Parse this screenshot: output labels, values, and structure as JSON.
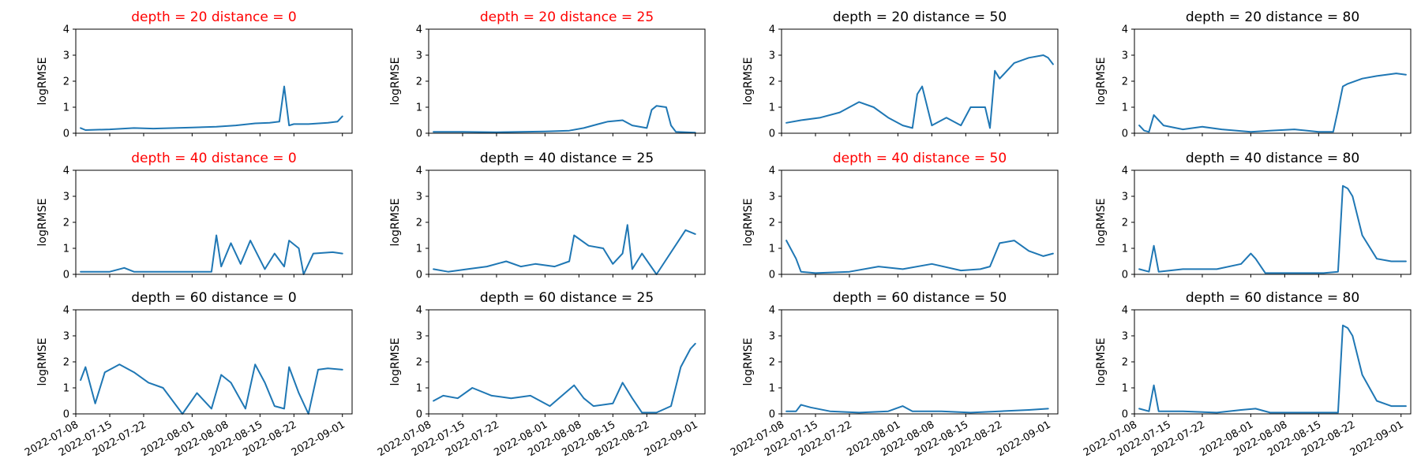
{
  "colors": {
    "series": "#1f77b4",
    "highlight": "#ff0000",
    "normal": "#000000",
    "frame": "#000000"
  },
  "chart_data": [
    {
      "type": "line",
      "title": "depth = 20  distance = 0",
      "title_color": "#ff0000",
      "ylabel": "logRMSE",
      "xlim": [
        "2022-07-08",
        "2022-09-03"
      ],
      "ylim": [
        0,
        4
      ],
      "yticks": [
        "0",
        "1",
        "2",
        "3",
        "4"
      ],
      "xticks": [
        "2022-07-08",
        "2022-07-15",
        "2022-07-22",
        "2022-08-01",
        "2022-08-08",
        "2022-08-15",
        "2022-08-22",
        "2022-09-01"
      ],
      "show_xticklabels": false,
      "series": [
        {
          "x": [
            "2022-07-09",
            "2022-07-10",
            "2022-07-15",
            "2022-07-20",
            "2022-07-24",
            "2022-08-01",
            "2022-08-06",
            "2022-08-10",
            "2022-08-14",
            "2022-08-17",
            "2022-08-19",
            "2022-08-20",
            "2022-08-21",
            "2022-08-22",
            "2022-08-25",
            "2022-08-29",
            "2022-08-31",
            "2022-09-01"
          ],
          "y": [
            0.2,
            0.12,
            0.15,
            0.2,
            0.18,
            0.22,
            0.25,
            0.3,
            0.38,
            0.4,
            0.45,
            1.8,
            0.3,
            0.35,
            0.35,
            0.4,
            0.45,
            0.65
          ]
        }
      ]
    },
    {
      "type": "line",
      "title": "depth = 20  distance = 25",
      "title_color": "#ff0000",
      "ylabel": "logRMSE",
      "xlim": [
        "2022-07-08",
        "2022-09-03"
      ],
      "ylim": [
        0,
        4
      ],
      "yticks": [
        "0",
        "1",
        "2",
        "3",
        "4"
      ],
      "xticks": [
        "2022-07-08",
        "2022-07-15",
        "2022-07-22",
        "2022-08-01",
        "2022-08-08",
        "2022-08-15",
        "2022-08-22",
        "2022-09-01"
      ],
      "show_xticklabels": false,
      "series": [
        {
          "x": [
            "2022-07-09",
            "2022-07-15",
            "2022-07-22",
            "2022-08-01",
            "2022-08-06",
            "2022-08-09",
            "2022-08-12",
            "2022-08-14",
            "2022-08-17",
            "2022-08-19",
            "2022-08-22",
            "2022-08-23",
            "2022-08-24",
            "2022-08-26",
            "2022-08-27",
            "2022-08-28",
            "2022-09-01"
          ],
          "y": [
            0.05,
            0.05,
            0.04,
            0.07,
            0.1,
            0.2,
            0.35,
            0.45,
            0.5,
            0.3,
            0.2,
            0.9,
            1.05,
            1.0,
            0.3,
            0.05,
            0.02
          ]
        }
      ]
    },
    {
      "type": "line",
      "title": "depth = 20  distance = 50",
      "title_color": "#000000",
      "ylabel": "logRMSE",
      "xlim": [
        "2022-07-08",
        "2022-09-03"
      ],
      "ylim": [
        0,
        4
      ],
      "yticks": [
        "0",
        "1",
        "2",
        "3",
        "4"
      ],
      "xticks": [
        "2022-07-08",
        "2022-07-15",
        "2022-07-22",
        "2022-08-01",
        "2022-08-08",
        "2022-08-15",
        "2022-08-22",
        "2022-09-01"
      ],
      "show_xticklabels": false,
      "series": [
        {
          "x": [
            "2022-07-09",
            "2022-07-12",
            "2022-07-16",
            "2022-07-20",
            "2022-07-24",
            "2022-07-27",
            "2022-07-30",
            "2022-08-02",
            "2022-08-04",
            "2022-08-05",
            "2022-08-06",
            "2022-08-08",
            "2022-08-11",
            "2022-08-14",
            "2022-08-16",
            "2022-08-19",
            "2022-08-20",
            "2022-08-21",
            "2022-08-22",
            "2022-08-25",
            "2022-08-28",
            "2022-08-31",
            "2022-09-01",
            "2022-09-02"
          ],
          "y": [
            0.4,
            0.5,
            0.6,
            0.8,
            1.2,
            1.0,
            0.6,
            0.3,
            0.2,
            1.5,
            1.8,
            0.3,
            0.6,
            0.3,
            1.0,
            1.0,
            0.2,
            2.4,
            2.1,
            2.7,
            2.9,
            3.0,
            2.9,
            2.65
          ]
        }
      ]
    },
    {
      "type": "line",
      "title": "depth = 20  distance = 80",
      "title_color": "#000000",
      "ylabel": "logRMSE",
      "xlim": [
        "2022-07-08",
        "2022-09-03"
      ],
      "ylim": [
        0,
        4
      ],
      "yticks": [
        "0",
        "1",
        "2",
        "3",
        "4"
      ],
      "xticks": [
        "2022-07-08",
        "2022-07-15",
        "2022-07-22",
        "2022-08-01",
        "2022-08-08",
        "2022-08-15",
        "2022-08-22",
        "2022-09-01"
      ],
      "show_xticklabels": false,
      "series": [
        {
          "x": [
            "2022-07-09",
            "2022-07-10",
            "2022-07-11",
            "2022-07-12",
            "2022-07-14",
            "2022-07-18",
            "2022-07-22",
            "2022-07-26",
            "2022-08-01",
            "2022-08-05",
            "2022-08-10",
            "2022-08-15",
            "2022-08-18",
            "2022-08-19",
            "2022-08-20",
            "2022-08-21",
            "2022-08-24",
            "2022-08-27",
            "2022-08-31",
            "2022-09-02"
          ],
          "y": [
            0.3,
            0.1,
            0.05,
            0.7,
            0.3,
            0.15,
            0.25,
            0.15,
            0.05,
            0.1,
            0.15,
            0.05,
            0.05,
            0.9,
            1.8,
            1.9,
            2.1,
            2.2,
            2.3,
            2.25
          ]
        }
      ]
    },
    {
      "type": "line",
      "title": "depth = 40  distance = 0",
      "title_color": "#ff0000",
      "ylabel": "logRMSE",
      "xlim": [
        "2022-07-08",
        "2022-09-03"
      ],
      "ylim": [
        0,
        4
      ],
      "yticks": [
        "0",
        "1",
        "2",
        "3",
        "4"
      ],
      "xticks": [
        "2022-07-08",
        "2022-07-15",
        "2022-07-22",
        "2022-08-01",
        "2022-08-08",
        "2022-08-15",
        "2022-08-22",
        "2022-09-01"
      ],
      "show_xticklabels": false,
      "series": [
        {
          "x": [
            "2022-07-09",
            "2022-07-15",
            "2022-07-18",
            "2022-07-20",
            "2022-07-24",
            "2022-08-01",
            "2022-08-05",
            "2022-08-06",
            "2022-08-07",
            "2022-08-09",
            "2022-08-11",
            "2022-08-13",
            "2022-08-16",
            "2022-08-18",
            "2022-08-20",
            "2022-08-21",
            "2022-08-23",
            "2022-08-24",
            "2022-08-26",
            "2022-08-30",
            "2022-09-01"
          ],
          "y": [
            0.1,
            0.1,
            0.25,
            0.1,
            0.1,
            0.1,
            0.1,
            1.5,
            0.3,
            1.2,
            0.4,
            1.3,
            0.2,
            0.8,
            0.3,
            1.3,
            1.0,
            0.0,
            0.8,
            0.85,
            0.8
          ]
        }
      ]
    },
    {
      "type": "line",
      "title": "depth = 40  distance = 25",
      "title_color": "#000000",
      "ylabel": "logRMSE",
      "xlim": [
        "2022-07-08",
        "2022-09-03"
      ],
      "ylim": [
        0,
        4
      ],
      "yticks": [
        "0",
        "1",
        "2",
        "3",
        "4"
      ],
      "xticks": [
        "2022-07-08",
        "2022-07-15",
        "2022-07-22",
        "2022-08-01",
        "2022-08-08",
        "2022-08-15",
        "2022-08-22",
        "2022-09-01"
      ],
      "show_xticklabels": false,
      "series": [
        {
          "x": [
            "2022-07-09",
            "2022-07-12",
            "2022-07-16",
            "2022-07-20",
            "2022-07-24",
            "2022-07-27",
            "2022-07-30",
            "2022-08-03",
            "2022-08-06",
            "2022-08-07",
            "2022-08-10",
            "2022-08-13",
            "2022-08-15",
            "2022-08-17",
            "2022-08-18",
            "2022-08-19",
            "2022-08-21",
            "2022-08-24",
            "2022-08-30",
            "2022-09-01"
          ],
          "y": [
            0.2,
            0.1,
            0.2,
            0.3,
            0.5,
            0.3,
            0.4,
            0.3,
            0.5,
            1.5,
            1.1,
            1.0,
            0.4,
            0.8,
            1.9,
            0.2,
            0.8,
            0.0,
            1.7,
            1.55
          ]
        }
      ]
    },
    {
      "type": "line",
      "title": "depth = 40  distance = 50",
      "title_color": "#ff0000",
      "ylabel": "logRMSE",
      "xlim": [
        "2022-07-08",
        "2022-09-03"
      ],
      "ylim": [
        0,
        4
      ],
      "yticks": [
        "0",
        "1",
        "2",
        "3",
        "4"
      ],
      "xticks": [
        "2022-07-08",
        "2022-07-15",
        "2022-07-22",
        "2022-08-01",
        "2022-08-08",
        "2022-08-15",
        "2022-08-22",
        "2022-09-01"
      ],
      "show_xticklabels": false,
      "series": [
        {
          "x": [
            "2022-07-09",
            "2022-07-11",
            "2022-07-12",
            "2022-07-15",
            "2022-07-22",
            "2022-07-28",
            "2022-08-02",
            "2022-08-08",
            "2022-08-14",
            "2022-08-18",
            "2022-08-20",
            "2022-08-22",
            "2022-08-25",
            "2022-08-28",
            "2022-08-31",
            "2022-09-02"
          ],
          "y": [
            1.3,
            0.6,
            0.1,
            0.05,
            0.1,
            0.3,
            0.2,
            0.4,
            0.15,
            0.2,
            0.3,
            1.2,
            1.3,
            0.9,
            0.7,
            0.8
          ]
        }
      ]
    },
    {
      "type": "line",
      "title": "depth = 40  distance = 80",
      "title_color": "#000000",
      "ylabel": "logRMSE",
      "xlim": [
        "2022-07-08",
        "2022-09-03"
      ],
      "ylim": [
        0,
        4
      ],
      "yticks": [
        "0",
        "1",
        "2",
        "3",
        "4"
      ],
      "xticks": [
        "2022-07-08",
        "2022-07-15",
        "2022-07-22",
        "2022-08-01",
        "2022-08-08",
        "2022-08-15",
        "2022-08-22",
        "2022-09-01"
      ],
      "show_xticklabels": false,
      "series": [
        {
          "x": [
            "2022-07-09",
            "2022-07-11",
            "2022-07-12",
            "2022-07-13",
            "2022-07-18",
            "2022-07-25",
            "2022-07-30",
            "2022-08-01",
            "2022-08-02",
            "2022-08-04",
            "2022-08-10",
            "2022-08-16",
            "2022-08-19",
            "2022-08-20",
            "2022-08-21",
            "2022-08-22",
            "2022-08-24",
            "2022-08-27",
            "2022-08-30",
            "2022-09-02"
          ],
          "y": [
            0.2,
            0.1,
            1.1,
            0.1,
            0.2,
            0.2,
            0.4,
            0.8,
            0.6,
            0.05,
            0.05,
            0.05,
            0.1,
            3.4,
            3.3,
            3.0,
            1.5,
            0.6,
            0.5,
            0.5
          ]
        }
      ]
    },
    {
      "type": "line",
      "title": "depth = 60  distance = 0",
      "title_color": "#000000",
      "ylabel": "logRMSE",
      "xlim": [
        "2022-07-08",
        "2022-09-03"
      ],
      "ylim": [
        0,
        4
      ],
      "yticks": [
        "0",
        "1",
        "2",
        "3",
        "4"
      ],
      "xticks": [
        "2022-07-08",
        "2022-07-15",
        "2022-07-22",
        "2022-08-01",
        "2022-08-08",
        "2022-08-15",
        "2022-08-22",
        "2022-09-01"
      ],
      "show_xticklabels": true,
      "series": [
        {
          "x": [
            "2022-07-09",
            "2022-07-10",
            "2022-07-12",
            "2022-07-14",
            "2022-07-17",
            "2022-07-20",
            "2022-07-23",
            "2022-07-26",
            "2022-07-30",
            "2022-08-02",
            "2022-08-05",
            "2022-08-07",
            "2022-08-09",
            "2022-08-12",
            "2022-08-14",
            "2022-08-16",
            "2022-08-18",
            "2022-08-20",
            "2022-08-21",
            "2022-08-23",
            "2022-08-25",
            "2022-08-27",
            "2022-08-29",
            "2022-09-01"
          ],
          "y": [
            1.3,
            1.8,
            0.4,
            1.6,
            1.9,
            1.6,
            1.2,
            1.0,
            0.0,
            0.8,
            0.2,
            1.5,
            1.2,
            0.2,
            1.9,
            1.2,
            0.3,
            0.2,
            1.8,
            0.8,
            0.0,
            1.7,
            1.75,
            1.7
          ]
        }
      ]
    },
    {
      "type": "line",
      "title": "depth = 60  distance = 25",
      "title_color": "#000000",
      "ylabel": "logRMSE",
      "xlim": [
        "2022-07-08",
        "2022-09-03"
      ],
      "ylim": [
        0,
        4
      ],
      "yticks": [
        "0",
        "1",
        "2",
        "3",
        "4"
      ],
      "xticks": [
        "2022-07-08",
        "2022-07-15",
        "2022-07-22",
        "2022-08-01",
        "2022-08-08",
        "2022-08-15",
        "2022-08-22",
        "2022-09-01"
      ],
      "show_xticklabels": true,
      "series": [
        {
          "x": [
            "2022-07-09",
            "2022-07-11",
            "2022-07-14",
            "2022-07-17",
            "2022-07-21",
            "2022-07-25",
            "2022-07-29",
            "2022-08-02",
            "2022-08-07",
            "2022-08-09",
            "2022-08-11",
            "2022-08-15",
            "2022-08-17",
            "2022-08-19",
            "2022-08-21",
            "2022-08-24",
            "2022-08-27",
            "2022-08-29",
            "2022-08-31",
            "2022-09-01"
          ],
          "y": [
            0.5,
            0.7,
            0.6,
            1.0,
            0.7,
            0.6,
            0.7,
            0.3,
            1.1,
            0.6,
            0.3,
            0.4,
            1.2,
            0.6,
            0.05,
            0.05,
            0.3,
            1.8,
            2.5,
            2.7
          ]
        }
      ]
    },
    {
      "type": "line",
      "title": "depth = 60  distance = 50",
      "title_color": "#000000",
      "ylabel": "logRMSE",
      "xlim": [
        "2022-07-08",
        "2022-09-03"
      ],
      "ylim": [
        0,
        4
      ],
      "yticks": [
        "0",
        "1",
        "2",
        "3",
        "4"
      ],
      "xticks": [
        "2022-07-08",
        "2022-07-15",
        "2022-07-22",
        "2022-08-01",
        "2022-08-08",
        "2022-08-15",
        "2022-08-22",
        "2022-09-01"
      ],
      "show_xticklabels": true,
      "series": [
        {
          "x": [
            "2022-07-09",
            "2022-07-11",
            "2022-07-12",
            "2022-07-14",
            "2022-07-18",
            "2022-07-24",
            "2022-07-30",
            "2022-08-02",
            "2022-08-04",
            "2022-08-10",
            "2022-08-16",
            "2022-08-22",
            "2022-08-28",
            "2022-09-01"
          ],
          "y": [
            0.1,
            0.1,
            0.35,
            0.25,
            0.1,
            0.05,
            0.1,
            0.3,
            0.1,
            0.1,
            0.05,
            0.1,
            0.15,
            0.2
          ]
        }
      ]
    },
    {
      "type": "line",
      "title": "depth = 60  distance = 80",
      "title_color": "#000000",
      "ylabel": "logRMSE",
      "xlim": [
        "2022-07-08",
        "2022-09-03"
      ],
      "ylim": [
        0,
        4
      ],
      "yticks": [
        "0",
        "1",
        "2",
        "3",
        "4"
      ],
      "xticks": [
        "2022-07-08",
        "2022-07-15",
        "2022-07-22",
        "2022-08-01",
        "2022-08-08",
        "2022-08-15",
        "2022-08-22",
        "2022-09-01"
      ],
      "show_xticklabels": true,
      "series": [
        {
          "x": [
            "2022-07-09",
            "2022-07-11",
            "2022-07-12",
            "2022-07-13",
            "2022-07-18",
            "2022-07-25",
            "2022-07-30",
            "2022-08-02",
            "2022-08-05",
            "2022-08-10",
            "2022-08-16",
            "2022-08-19",
            "2022-08-20",
            "2022-08-21",
            "2022-08-22",
            "2022-08-24",
            "2022-08-27",
            "2022-08-30",
            "2022-09-02"
          ],
          "y": [
            0.2,
            0.1,
            1.1,
            0.1,
            0.1,
            0.05,
            0.15,
            0.2,
            0.05,
            0.05,
            0.05,
            0.05,
            3.4,
            3.3,
            3.0,
            1.5,
            0.5,
            0.3,
            0.3
          ]
        }
      ]
    }
  ]
}
